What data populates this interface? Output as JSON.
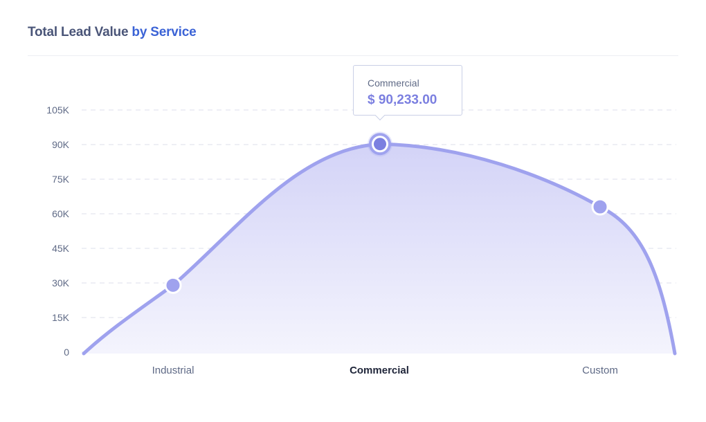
{
  "header": {
    "title_main": "Total Lead Value",
    "title_accent": "by Service"
  },
  "tooltip": {
    "label": "Commercial",
    "value": "$ 90,233.00"
  },
  "colors": {
    "line": "#9fa2ee",
    "highlight_point": "#7b7fe0",
    "fill_top": "#d3d3f7",
    "fill_bottom": "#f4f4fd",
    "grid": "#e8eaf2"
  },
  "chart_data": {
    "type": "area",
    "categories": [
      "Industrial",
      "Commercial",
      "Custom"
    ],
    "values": [
      29000,
      90233,
      63000
    ],
    "highlighted_category": "Commercial",
    "ylim": [
      0,
      105000
    ],
    "yticks": [
      0,
      15000,
      30000,
      45000,
      60000,
      75000,
      90000,
      105000
    ],
    "ytick_labels": [
      "0",
      "15K",
      "30K",
      "45K",
      "60K",
      "75K",
      "90K",
      "105K"
    ],
    "grid": true,
    "smooth": true
  }
}
